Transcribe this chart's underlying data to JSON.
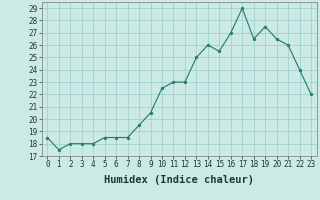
{
  "x": [
    0,
    1,
    2,
    3,
    4,
    5,
    6,
    7,
    8,
    9,
    10,
    11,
    12,
    13,
    14,
    15,
    16,
    17,
    18,
    19,
    20,
    21,
    22,
    23
  ],
  "y": [
    18.5,
    17.5,
    18.0,
    18.0,
    18.0,
    18.5,
    18.5,
    18.5,
    19.5,
    20.5,
    22.5,
    23.0,
    23.0,
    25.0,
    26.0,
    25.5,
    27.0,
    29.0,
    26.5,
    27.5,
    26.5,
    26.0,
    24.0,
    22.0
  ],
  "xlabel": "Humidex (Indice chaleur)",
  "ylim": [
    17,
    29.5
  ],
  "xlim": [
    -0.5,
    23.5
  ],
  "yticks": [
    17,
    18,
    19,
    20,
    21,
    22,
    23,
    24,
    25,
    26,
    27,
    28,
    29
  ],
  "xticks": [
    0,
    1,
    2,
    3,
    4,
    5,
    6,
    7,
    8,
    9,
    10,
    11,
    12,
    13,
    14,
    15,
    16,
    17,
    18,
    19,
    20,
    21,
    22,
    23
  ],
  "line_color": "#2d7d6e",
  "marker_color": "#2d7d6e",
  "bg_color": "#cceae4",
  "grid_color": "#99cccc",
  "tick_fontsize": 5.5,
  "xlabel_fontsize": 7.5
}
